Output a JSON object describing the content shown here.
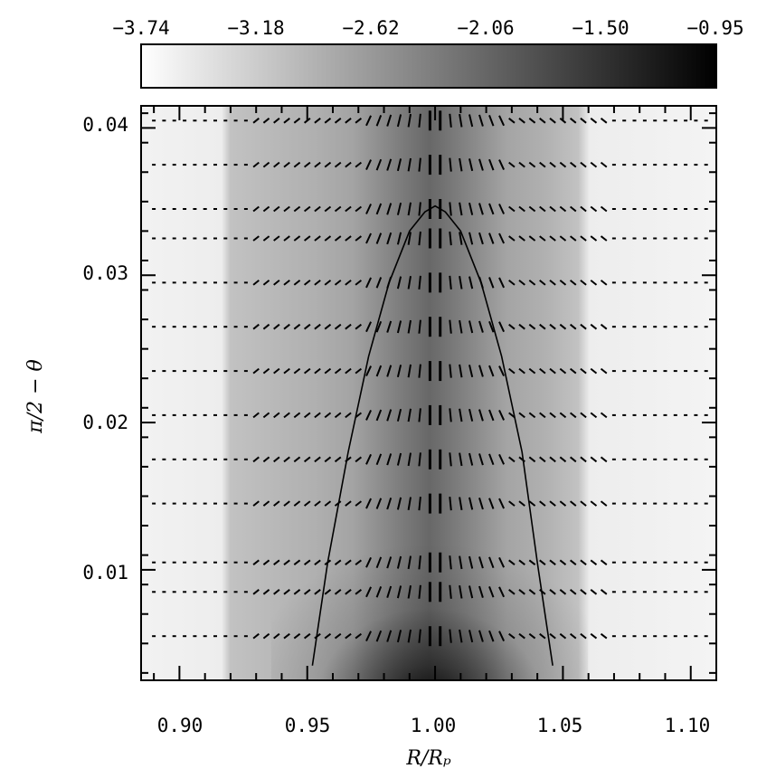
{
  "chart_data": {
    "type": "heatmap",
    "colorbar": {
      "tick_labels": [
        "−3.74",
        "−3.18",
        "−2.62",
        "−2.06",
        "−1.50",
        "−0.95"
      ],
      "range": [
        -3.74,
        -0.95
      ],
      "colormap": "white-to-black"
    },
    "xlabel": "R/Rₚ",
    "ylabel": "π/2 − θ",
    "xlim": [
      0.885,
      1.11
    ],
    "ylim": [
      0.0025,
      0.0415
    ],
    "x_ticks": [
      0.9,
      0.95,
      1.0,
      1.05,
      1.1
    ],
    "x_tick_labels": [
      "0.90",
      "0.95",
      "1.00",
      "1.05",
      "1.10"
    ],
    "y_ticks": [
      0.01,
      0.02,
      0.03,
      0.04
    ],
    "y_tick_labels": [
      "0.01",
      "0.02",
      "0.03",
      "0.04"
    ],
    "vector_rows_y": [
      0.0055,
      0.0085,
      0.0105,
      0.0145,
      0.0175,
      0.0205,
      0.0235,
      0.0265,
      0.0295,
      0.0325,
      0.0345,
      0.0375,
      0.0405
    ],
    "vector_columns_x": [
      0.89,
      0.894,
      0.898,
      0.902,
      0.906,
      0.91,
      0.914,
      0.918,
      0.922,
      0.926,
      0.93,
      0.934,
      0.938,
      0.942,
      0.946,
      0.95,
      0.954,
      0.958,
      0.962,
      0.966,
      0.97,
      0.974,
      0.978,
      0.982,
      0.986,
      0.99,
      0.994,
      0.998,
      1.002,
      1.006,
      1.01,
      1.014,
      1.018,
      1.022,
      1.026,
      1.03,
      1.034,
      1.038,
      1.042,
      1.046,
      1.05,
      1.054,
      1.058,
      1.062,
      1.066,
      1.07,
      1.074,
      1.078,
      1.082,
      1.086,
      1.09,
      1.094,
      1.098,
      1.102,
      1.106
    ],
    "boundary_curve": {
      "x": [
        0.952,
        0.958,
        0.966,
        0.974,
        0.982,
        0.99,
        0.996,
        1.0,
        1.004,
        1.01,
        1.018,
        1.026,
        1.034,
        1.04,
        1.046
      ],
      "y": [
        0.0035,
        0.0105,
        0.018,
        0.0245,
        0.0295,
        0.033,
        0.0343,
        0.0347,
        0.0343,
        0.033,
        0.0295,
        0.0245,
        0.018,
        0.0105,
        0.0035
      ]
    }
  }
}
